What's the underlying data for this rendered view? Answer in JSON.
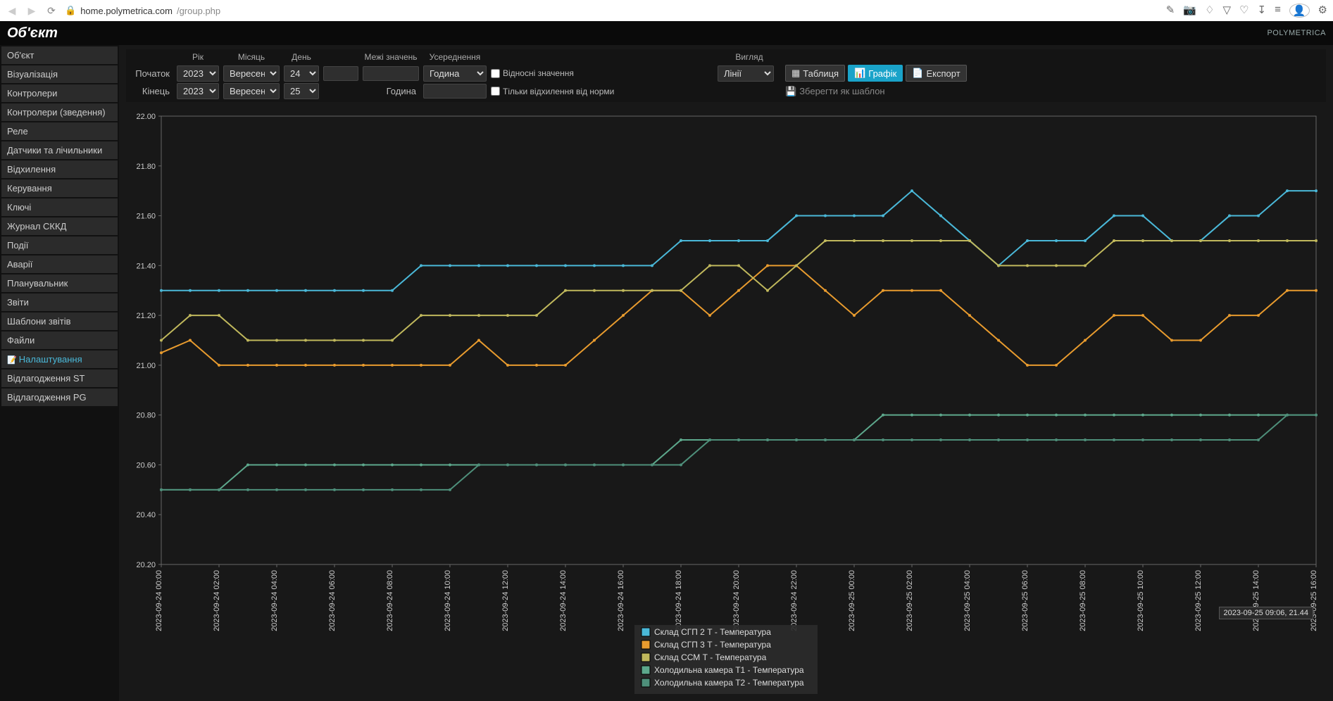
{
  "browser": {
    "url_host": "home.polymetrica.com",
    "url_path": "/group.php"
  },
  "header": {
    "title": "Об'єкт",
    "brand": "POLYMETRICA"
  },
  "sidebar": {
    "items": [
      {
        "label": "Об'єкт",
        "active": false
      },
      {
        "label": "Візуалізація",
        "active": false
      },
      {
        "label": "Контролери",
        "active": false
      },
      {
        "label": "Контролери (зведення)",
        "active": false
      },
      {
        "label": "Реле",
        "active": false
      },
      {
        "label": "Датчики та лічильники",
        "active": false
      },
      {
        "label": "Відхилення",
        "active": false
      },
      {
        "label": "Керування",
        "active": false
      },
      {
        "label": "Ключі",
        "active": false
      },
      {
        "label": "Журнал СККД",
        "active": false
      },
      {
        "label": "Події",
        "active": false
      },
      {
        "label": "Аварії",
        "active": false
      },
      {
        "label": "Планувальник",
        "active": false
      },
      {
        "label": "Звіти",
        "active": false
      },
      {
        "label": "Шаблони звітів",
        "active": false
      },
      {
        "label": "Файли",
        "active": false
      },
      {
        "label": "Налаштування",
        "active": true
      },
      {
        "label": "Відлагодження ST",
        "active": false
      },
      {
        "label": "Відлагодження PG",
        "active": false
      }
    ]
  },
  "controls": {
    "headers": {
      "year": "Рік",
      "month": "Місяць",
      "day": "День",
      "range": "Межі значень",
      "avg": "Усереднення",
      "view": "Вигляд"
    },
    "start_label": "Початок",
    "end_label": "Кінець",
    "start": {
      "year": "2023",
      "month": "Вересень",
      "day": "24"
    },
    "end": {
      "year": "2023",
      "month": "Вересень",
      "day": "25"
    },
    "avg_unit": "Година",
    "end_unit": "Година",
    "chk_relative": "Відносні значення",
    "chk_deviation": "Тільки відхилення від норми",
    "view_value": "Лінії",
    "btn_table": "Таблиця",
    "btn_chart": "Графік",
    "btn_export": "Експорт",
    "save_template": "Зберегти як шаблон"
  },
  "chart": {
    "ylim": [
      20.2,
      22.0
    ],
    "ytick_step": 0.2,
    "y_ticks": [
      "22.00",
      "21.80",
      "21.60",
      "21.40",
      "21.20",
      "21.00",
      "20.80",
      "20.60",
      "20.40",
      "20.20"
    ],
    "x_count": 41,
    "x_label_every": 2,
    "x_labels": [
      "2023-09-24 00:00",
      "2023-09-24 02:00",
      "2023-09-24 04:00",
      "2023-09-24 06:00",
      "2023-09-24 08:00",
      "2023-09-24 10:00",
      "2023-09-24 12:00",
      "2023-09-24 14:00",
      "2023-09-24 16:00",
      "2023-09-24 18:00",
      "2023-09-24 20:00",
      "2023-09-24 22:00",
      "2023-09-25 00:00",
      "2023-09-25 02:00",
      "2023-09-25 04:00",
      "2023-09-25 06:00",
      "2023-09-25 08:00",
      "2023-09-25 10:00",
      "2023-09-25 12:00",
      "2023-09-25 14:00",
      "2023-09-25 16:00"
    ],
    "grid_color": "#333333",
    "axis_color": "#666666",
    "bg_color": "#181818",
    "tick_fontsize": 11,
    "tooltip": "2023-09-25 09:06, 21.44",
    "series": [
      {
        "name": "Склад СГП 2 Т - Температура",
        "color": "#4ab8d8",
        "values": [
          21.3,
          21.3,
          21.3,
          21.3,
          21.3,
          21.3,
          21.3,
          21.3,
          21.3,
          21.4,
          21.4,
          21.4,
          21.4,
          21.4,
          21.4,
          21.4,
          21.4,
          21.4,
          21.5,
          21.5,
          21.5,
          21.5,
          21.6,
          21.6,
          21.6,
          21.6,
          21.7,
          21.6,
          21.5,
          21.4,
          21.5,
          21.5,
          21.5,
          21.6,
          21.6,
          21.5,
          21.5,
          21.6,
          21.6,
          21.7,
          21.7
        ]
      },
      {
        "name": "Склад СГП 3 Т - Температура",
        "color": "#e89b2e",
        "values": [
          21.05,
          21.1,
          21.0,
          21.0,
          21.0,
          21.0,
          21.0,
          21.0,
          21.0,
          21.0,
          21.0,
          21.1,
          21.0,
          21.0,
          21.0,
          21.1,
          21.2,
          21.3,
          21.3,
          21.2,
          21.3,
          21.4,
          21.4,
          21.3,
          21.2,
          21.3,
          21.3,
          21.3,
          21.2,
          21.1,
          21.0,
          21.0,
          21.1,
          21.2,
          21.2,
          21.1,
          21.1,
          21.2,
          21.2,
          21.3,
          21.3
        ]
      },
      {
        "name": "Склад ССМ Т - Температура",
        "color": "#c0b85c",
        "values": [
          21.1,
          21.2,
          21.2,
          21.1,
          21.1,
          21.1,
          21.1,
          21.1,
          21.1,
          21.2,
          21.2,
          21.2,
          21.2,
          21.2,
          21.3,
          21.3,
          21.3,
          21.3,
          21.3,
          21.4,
          21.4,
          21.3,
          21.4,
          21.5,
          21.5,
          21.5,
          21.5,
          21.5,
          21.5,
          21.4,
          21.4,
          21.4,
          21.4,
          21.5,
          21.5,
          21.5,
          21.5,
          21.5,
          21.5,
          21.5,
          21.5
        ]
      },
      {
        "name": "Холодильна камера Т1 - Температура",
        "color": "#5da88c",
        "values": [
          20.5,
          20.5,
          20.5,
          20.6,
          20.6,
          20.6,
          20.6,
          20.6,
          20.6,
          20.6,
          20.6,
          20.6,
          20.6,
          20.6,
          20.6,
          20.6,
          20.6,
          20.6,
          20.7,
          20.7,
          20.7,
          20.7,
          20.7,
          20.7,
          20.7,
          20.8,
          20.8,
          20.8,
          20.8,
          20.8,
          20.8,
          20.8,
          20.8,
          20.8,
          20.8,
          20.8,
          20.8,
          20.8,
          20.8,
          20.8,
          20.8
        ]
      },
      {
        "name": "Холодильна камера Т2 - Температура",
        "color": "#4e8f7a",
        "values": [
          20.5,
          20.5,
          20.5,
          20.5,
          20.5,
          20.5,
          20.5,
          20.5,
          20.5,
          20.5,
          20.5,
          20.6,
          20.6,
          20.6,
          20.6,
          20.6,
          20.6,
          20.6,
          20.6,
          20.7,
          20.7,
          20.7,
          20.7,
          20.7,
          20.7,
          20.7,
          20.7,
          20.7,
          20.7,
          20.7,
          20.7,
          20.7,
          20.7,
          20.7,
          20.7,
          20.7,
          20.7,
          20.7,
          20.7,
          20.8,
          20.8
        ]
      }
    ]
  }
}
